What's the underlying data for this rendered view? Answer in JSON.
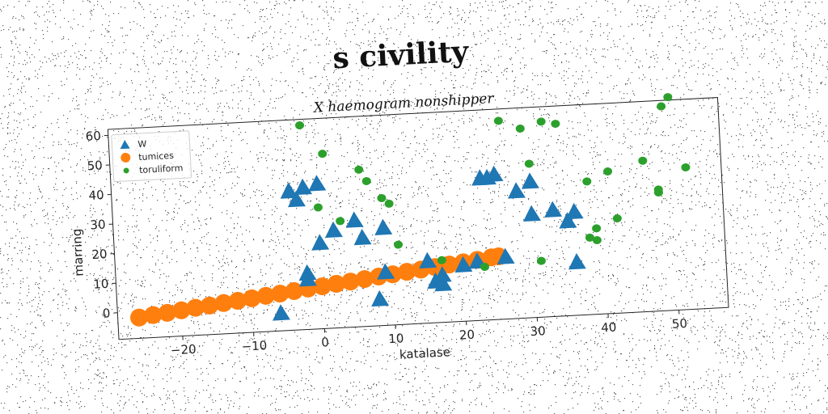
{
  "chart_data": {
    "type": "scatter",
    "suptitle": "s civility",
    "title": "X haemogram nonshipper",
    "xlabel": "katalase",
    "ylabel": "marring",
    "xlim": [
      -29,
      57
    ],
    "ylim": [
      -9,
      62
    ],
    "xticks": [
      -20,
      -10,
      0,
      10,
      20,
      30,
      40,
      50
    ],
    "yticks": [
      0,
      10,
      20,
      30,
      40,
      50,
      60
    ],
    "grid": false,
    "legend_position": "top-left",
    "rotation_deg": -3,
    "series": [
      {
        "name": "W",
        "marker": "triangle",
        "color": "#1f77b4",
        "x": [
          -4,
          -3,
          -2,
          -6,
          -2,
          0,
          6,
          0,
          2,
          8,
          9,
          -2,
          5,
          17,
          16,
          20,
          23,
          24,
          26,
          28,
          30,
          30,
          33,
          35,
          36,
          36,
          17,
          25,
          9,
          15,
          22
        ],
        "y": [
          38,
          35,
          10,
          -3,
          39,
          20,
          21,
          40,
          24,
          0,
          24,
          8,
          27,
          4,
          5,
          10,
          39,
          39,
          12,
          34,
          26,
          37,
          27,
          23,
          26,
          9,
          7,
          40,
          9,
          12,
          11
        ]
      },
      {
        "name": "tumices",
        "marker": "circle",
        "color": "#ff7f0e",
        "x": [
          -26,
          -24,
          -22,
          -20,
          -18,
          -16,
          -14,
          -12,
          -10,
          -8,
          -6,
          -4,
          -2,
          0,
          2,
          4,
          6,
          8,
          10,
          12,
          14,
          16,
          18,
          20,
          22,
          24,
          25
        ],
        "y": [
          -2,
          -1.4,
          -0.9,
          -0.3,
          0.3,
          0.8,
          1.4,
          1.9,
          2.5,
          3.1,
          3.6,
          4.2,
          4.8,
          5.3,
          5.9,
          6.4,
          7,
          7.6,
          8.1,
          8.7,
          9.2,
          9.8,
          10.4,
          10.9,
          11.5,
          12.1,
          12.3
        ]
      },
      {
        "name": "toruliform",
        "marker": "circle",
        "color": "#2ca02c",
        "x": [
          -2,
          1,
          6,
          7,
          9,
          10,
          11,
          0,
          3,
          17,
          23,
          26,
          29,
          30,
          32,
          34,
          38,
          38,
          39,
          42,
          41,
          46,
          48,
          48,
          49,
          50,
          52,
          31,
          39
        ],
        "y": [
          60,
          50,
          44,
          40,
          34,
          32,
          18,
          32,
          27,
          12,
          9,
          58,
          55,
          43,
          57,
          56,
          36,
          17,
          20,
          23,
          39,
          42,
          32,
          31,
          60,
          63,
          39,
          10,
          16
        ]
      }
    ]
  }
}
